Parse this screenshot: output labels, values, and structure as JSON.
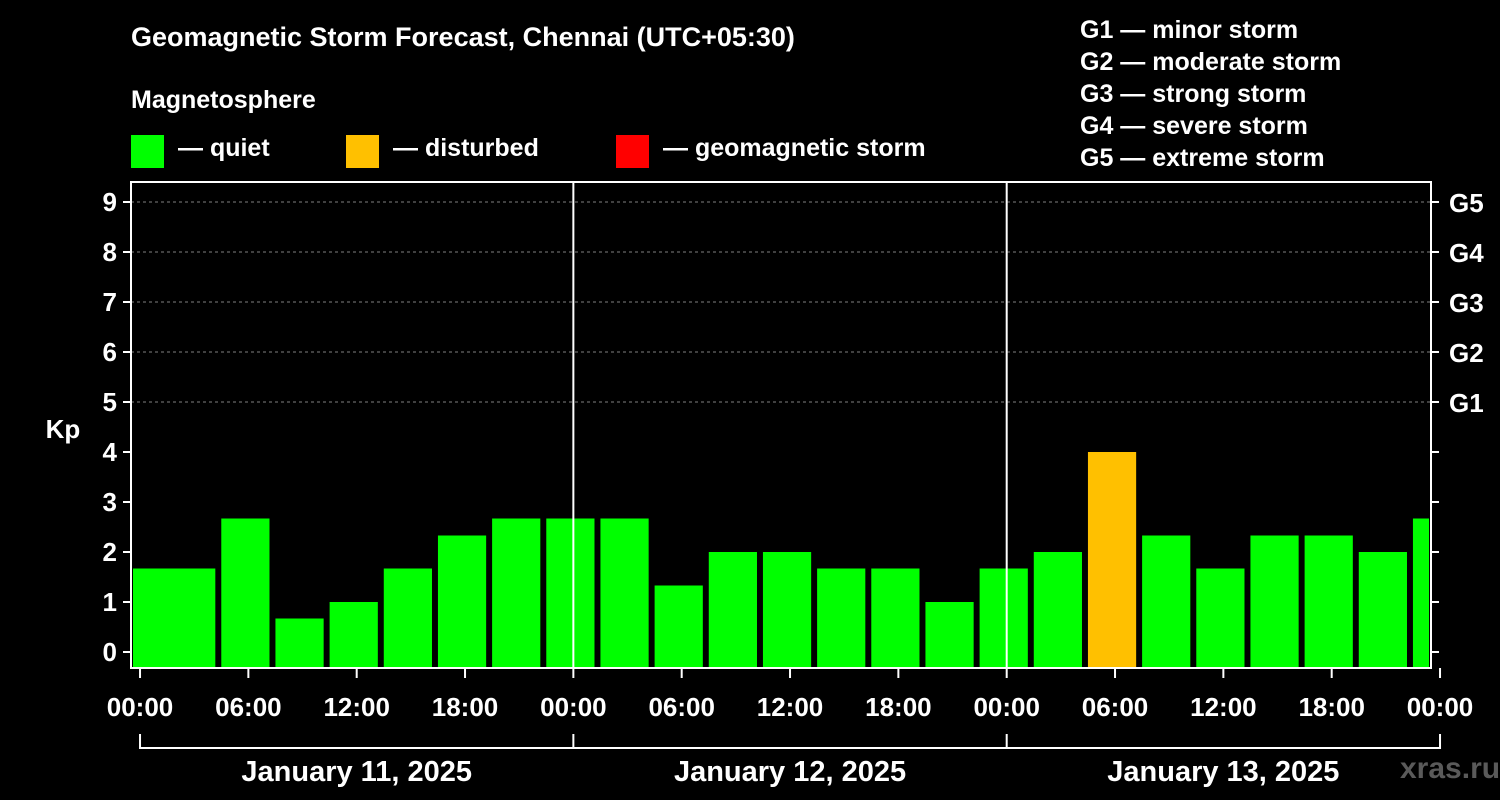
{
  "title": "Geomagnetic Storm Forecast, Chennai (UTC+05:30)",
  "magnetosphere_label": "Magnetosphere",
  "legend": [
    {
      "label": "— quiet",
      "color": "#00ff00"
    },
    {
      "label": "— disturbed",
      "color": "#ffc000"
    },
    {
      "label": "— geomagnetic storm",
      "color": "#ff0000"
    }
  ],
  "g_scale": [
    "G1 — minor storm",
    "G2 — moderate storm",
    "G3 — strong storm",
    "G4 — severe storm",
    "G5 — extreme storm"
  ],
  "watermark": "xras.ru",
  "chart_data": {
    "type": "bar",
    "title": "Geomagnetic Storm Forecast, Chennai (UTC+05:30)",
    "ylabel": "Kp",
    "ylim": [
      0,
      9
    ],
    "yticks": [
      0,
      1,
      2,
      3,
      4,
      5,
      6,
      7,
      8,
      9
    ],
    "right_axis": [
      {
        "kp": 5,
        "label": "G1"
      },
      {
        "kp": 6,
        "label": "G2"
      },
      {
        "kp": 7,
        "label": "G3"
      },
      {
        "kp": 8,
        "label": "G4"
      },
      {
        "kp": 9,
        "label": "G5"
      }
    ],
    "grid": "dashed at Kp 5–9",
    "x_range_hours": [
      -0.5,
      71.5
    ],
    "xticks": [
      {
        "hour": 0,
        "label": "00:00"
      },
      {
        "hour": 6,
        "label": "06:00"
      },
      {
        "hour": 12,
        "label": "12:00"
      },
      {
        "hour": 18,
        "label": "18:00"
      },
      {
        "hour": 24,
        "label": "00:00"
      },
      {
        "hour": 30,
        "label": "06:00"
      },
      {
        "hour": 36,
        "label": "12:00"
      },
      {
        "hour": 42,
        "label": "18:00"
      },
      {
        "hour": 48,
        "label": "00:00"
      },
      {
        "hour": 54,
        "label": "06:00"
      },
      {
        "hour": 60,
        "label": "12:00"
      },
      {
        "hour": 66,
        "label": "18:00"
      },
      {
        "hour": 72,
        "label": "00:00"
      }
    ],
    "day_dividers_hours": [
      24,
      48
    ],
    "days": [
      {
        "label": "January 11, 2025",
        "start_hour": 0,
        "end_hour": 24
      },
      {
        "label": "January 12, 2025",
        "start_hour": 24,
        "end_hour": 48
      },
      {
        "label": "January 13, 2025",
        "start_hour": 48,
        "end_hour": 72
      }
    ],
    "bar_width_hours": 2.67,
    "bars": [
      {
        "start_hour": 0,
        "kp": 1.67,
        "status": "quiet"
      },
      {
        "start_hour": 2,
        "kp": 1.67,
        "status": "quiet"
      },
      {
        "start_hour": 5,
        "kp": 2.67,
        "status": "quiet"
      },
      {
        "start_hour": 8,
        "kp": 0.67,
        "status": "quiet"
      },
      {
        "start_hour": 11,
        "kp": 1.0,
        "status": "quiet"
      },
      {
        "start_hour": 14,
        "kp": 1.67,
        "status": "quiet"
      },
      {
        "start_hour": 17,
        "kp": 2.33,
        "status": "quiet"
      },
      {
        "start_hour": 20,
        "kp": 2.67,
        "status": "quiet"
      },
      {
        "start_hour": 23,
        "kp": 2.67,
        "status": "quiet"
      },
      {
        "start_hour": 26,
        "kp": 2.67,
        "status": "quiet"
      },
      {
        "start_hour": 29,
        "kp": 1.33,
        "status": "quiet"
      },
      {
        "start_hour": 32,
        "kp": 2.0,
        "status": "quiet"
      },
      {
        "start_hour": 35,
        "kp": 2.0,
        "status": "quiet"
      },
      {
        "start_hour": 38,
        "kp": 1.67,
        "status": "quiet"
      },
      {
        "start_hour": 41,
        "kp": 1.67,
        "status": "quiet"
      },
      {
        "start_hour": 44,
        "kp": 1.0,
        "status": "quiet"
      },
      {
        "start_hour": 47,
        "kp": 1.67,
        "status": "quiet"
      },
      {
        "start_hour": 50,
        "kp": 2.0,
        "status": "quiet"
      },
      {
        "start_hour": 53,
        "kp": 4.0,
        "status": "disturbed"
      },
      {
        "start_hour": 56,
        "kp": 2.33,
        "status": "quiet"
      },
      {
        "start_hour": 59,
        "kp": 1.67,
        "status": "quiet"
      },
      {
        "start_hour": 62,
        "kp": 2.33,
        "status": "quiet"
      },
      {
        "start_hour": 65,
        "kp": 2.33,
        "status": "quiet"
      },
      {
        "start_hour": 68,
        "kp": 2.0,
        "status": "quiet"
      },
      {
        "start_hour": 71,
        "kp": 2.67,
        "status": "quiet"
      }
    ],
    "status_colors": {
      "quiet": "#00ff00",
      "disturbed": "#ffc000",
      "storm": "#ff0000"
    }
  }
}
